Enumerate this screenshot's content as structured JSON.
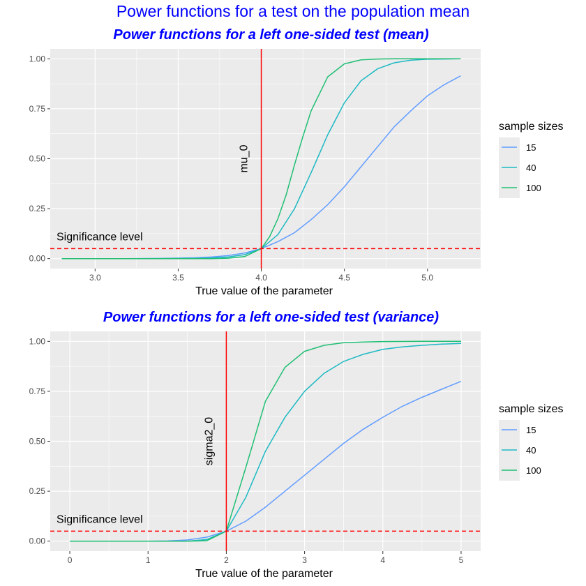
{
  "main_title": "Power functions for a test on the population mean",
  "chart_data": [
    {
      "type": "line",
      "title": "Power functions for a left one-sided test (mean)",
      "xlabel": "True value of the parameter",
      "ylabel": "",
      "xlim": [
        2.73,
        5.32
      ],
      "ylim": [
        -0.05,
        1.05
      ],
      "x_ticks": [
        3.0,
        3.5,
        4.0,
        4.5,
        5.0
      ],
      "x_tick_labels": [
        "3.0",
        "3.5",
        "4.0",
        "4.5",
        "5.0"
      ],
      "y_ticks": [
        0,
        0.25,
        0.5,
        0.75,
        1.0
      ],
      "y_tick_labels": [
        "0.00",
        "0.25",
        "0.50",
        "0.75",
        "1.00"
      ],
      "reference_line": {
        "x": 4.0,
        "label": "mu_0",
        "color": "#ff0000"
      },
      "significance_line": {
        "y": 0.05,
        "label": "Significance level",
        "color": "#ff0000"
      },
      "legend": {
        "title": "sample sizes",
        "position": "right"
      },
      "grid": true,
      "series": [
        {
          "name": "15",
          "color": "#619CFF",
          "x": [
            2.8,
            3.0,
            3.2,
            3.4,
            3.6,
            3.7,
            3.8,
            3.9,
            4.0,
            4.1,
            4.2,
            4.3,
            4.4,
            4.5,
            4.6,
            4.7,
            4.8,
            4.9,
            5.0,
            5.1,
            5.2
          ],
          "y": [
            0.0,
            0.0,
            0.0,
            0.001,
            0.004,
            0.008,
            0.015,
            0.028,
            0.05,
            0.085,
            0.13,
            0.195,
            0.27,
            0.36,
            0.46,
            0.56,
            0.66,
            0.74,
            0.815,
            0.87,
            0.915
          ]
        },
        {
          "name": "40",
          "color": "#1DB9C3",
          "x": [
            2.8,
            3.0,
            3.2,
            3.4,
            3.6,
            3.7,
            3.8,
            3.9,
            4.0,
            4.1,
            4.2,
            4.3,
            4.4,
            4.5,
            4.6,
            4.7,
            4.8,
            4.9,
            5.0,
            5.1,
            5.2
          ],
          "y": [
            0.0,
            0.0,
            0.0,
            0.0,
            0.001,
            0.003,
            0.008,
            0.02,
            0.05,
            0.12,
            0.25,
            0.43,
            0.62,
            0.78,
            0.89,
            0.95,
            0.98,
            0.993,
            0.998,
            0.999,
            1.0
          ]
        },
        {
          "name": "100",
          "color": "#1FBF73",
          "x": [
            2.8,
            3.0,
            3.2,
            3.4,
            3.6,
            3.7,
            3.8,
            3.9,
            4.0,
            4.05,
            4.1,
            4.15,
            4.2,
            4.25,
            4.3,
            4.4,
            4.5,
            4.6,
            4.7,
            4.8,
            5.0,
            5.2
          ],
          "y": [
            0.0,
            0.0,
            0.0,
            0.0,
            0.0,
            0.0,
            0.002,
            0.01,
            0.05,
            0.11,
            0.2,
            0.32,
            0.47,
            0.61,
            0.74,
            0.91,
            0.975,
            0.995,
            0.999,
            1.0,
            1.0,
            1.0
          ]
        }
      ]
    },
    {
      "type": "line",
      "title": "Power functions for a left one-sided test (variance)",
      "xlabel": "True value of the parameter",
      "ylabel": "",
      "xlim": [
        -0.25,
        5.25
      ],
      "ylim": [
        -0.05,
        1.05
      ],
      "x_ticks": [
        0,
        1,
        2,
        3,
        4,
        5
      ],
      "x_tick_labels": [
        "0",
        "1",
        "2",
        "3",
        "4",
        "5"
      ],
      "y_ticks": [
        0,
        0.25,
        0.5,
        0.75,
        1.0
      ],
      "y_tick_labels": [
        "0.00",
        "0.25",
        "0.50",
        "0.75",
        "1.00"
      ],
      "reference_line": {
        "x": 2.0,
        "label": "sigma2_0",
        "color": "#ff0000"
      },
      "significance_line": {
        "y": 0.05,
        "label": "Significance level",
        "color": "#ff0000"
      },
      "legend": {
        "title": "sample sizes",
        "position": "right"
      },
      "grid": true,
      "series": [
        {
          "name": "15",
          "color": "#619CFF",
          "x": [
            0,
            0.5,
            1.0,
            1.25,
            1.5,
            1.75,
            2.0,
            2.25,
            2.5,
            2.75,
            3.0,
            3.25,
            3.5,
            3.75,
            4.0,
            4.25,
            4.5,
            4.75,
            5.0
          ],
          "y": [
            0.0,
            0.0,
            0.0,
            0.001,
            0.006,
            0.02,
            0.05,
            0.1,
            0.17,
            0.25,
            0.33,
            0.41,
            0.49,
            0.56,
            0.62,
            0.675,
            0.72,
            0.76,
            0.8
          ]
        },
        {
          "name": "40",
          "color": "#1DB9C3",
          "x": [
            0,
            0.5,
            1.0,
            1.25,
            1.5,
            1.75,
            2.0,
            2.25,
            2.5,
            2.75,
            3.0,
            3.25,
            3.5,
            3.75,
            4.0,
            4.25,
            4.5,
            4.75,
            5.0
          ],
          "y": [
            0.0,
            0.0,
            0.0,
            0.0,
            0.0,
            0.008,
            0.05,
            0.22,
            0.45,
            0.62,
            0.75,
            0.84,
            0.9,
            0.935,
            0.96,
            0.972,
            0.98,
            0.986,
            0.99
          ]
        },
        {
          "name": "100",
          "color": "#1FBF73",
          "x": [
            0,
            0.5,
            1.0,
            1.25,
            1.5,
            1.75,
            2.0,
            2.25,
            2.5,
            2.75,
            3.0,
            3.25,
            3.5,
            3.75,
            4.0,
            4.5,
            5.0
          ],
          "y": [
            0.0,
            0.0,
            0.0,
            0.0,
            0.0,
            0.002,
            0.05,
            0.37,
            0.7,
            0.87,
            0.95,
            0.98,
            0.993,
            0.997,
            0.999,
            1.0,
            1.0
          ]
        }
      ]
    }
  ]
}
